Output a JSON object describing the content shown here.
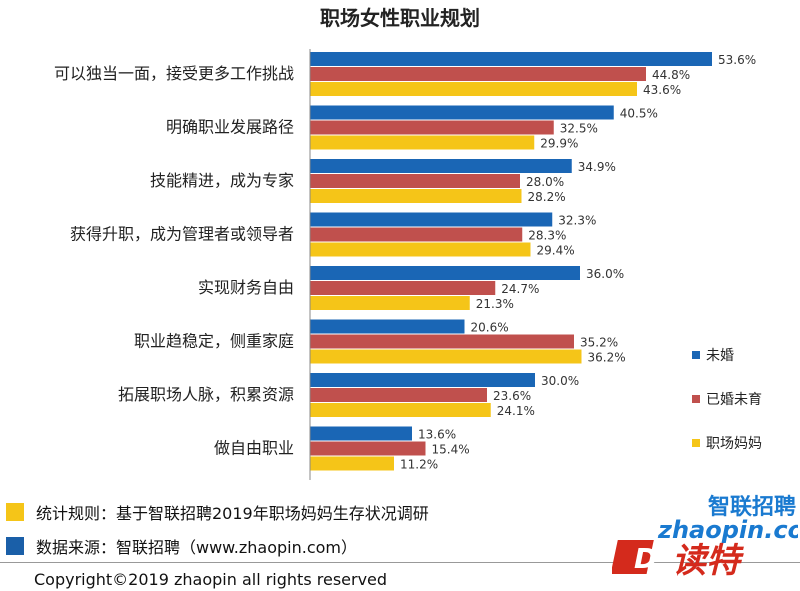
{
  "chart_data": {
    "type": "bar",
    "orientation": "horizontal",
    "title": "职场女性职业规划",
    "categories": [
      "可以独当一面，接受更多工作挑战",
      "明确职业发展路径",
      "技能精进，成为专家",
      "获得升职，成为管理者或领导者",
      "实现财务自由",
      "职业趋稳定，侧重家庭",
      "拓展职场人脉，积累资源",
      "做自由职业"
    ],
    "series": [
      {
        "name": "未婚",
        "color": "#1a66b5",
        "values": [
          53.6,
          40.5,
          34.9,
          32.3,
          36.0,
          20.6,
          30.0,
          13.6
        ]
      },
      {
        "name": "已婚未育",
        "color": "#c0504d",
        "values": [
          44.8,
          32.5,
          28.0,
          28.3,
          24.7,
          35.2,
          23.6,
          15.4
        ]
      },
      {
        "name": "职场妈妈",
        "color": "#f5c518",
        "values": [
          43.6,
          29.9,
          28.2,
          29.4,
          21.3,
          36.2,
          24.1,
          11.2
        ]
      }
    ],
    "xlim": [
      0,
      60
    ],
    "grid": false,
    "legend": "right"
  },
  "notes": {
    "rule": "统计规则：基于智联招聘2019年职场妈妈生存状况调研",
    "source": "数据来源：智联招聘（www.zhaopin.com）",
    "rule_color": "#f5c518",
    "source_color": "#1a5fa8"
  },
  "copyright": "Copyright©2019 zhaopin all rights reserved",
  "watermark": {
    "logo_text": "智联招聘",
    "logo_url_text": "zhaopin.com",
    "stamp_letter": "D",
    "stamp_text": "读特"
  }
}
